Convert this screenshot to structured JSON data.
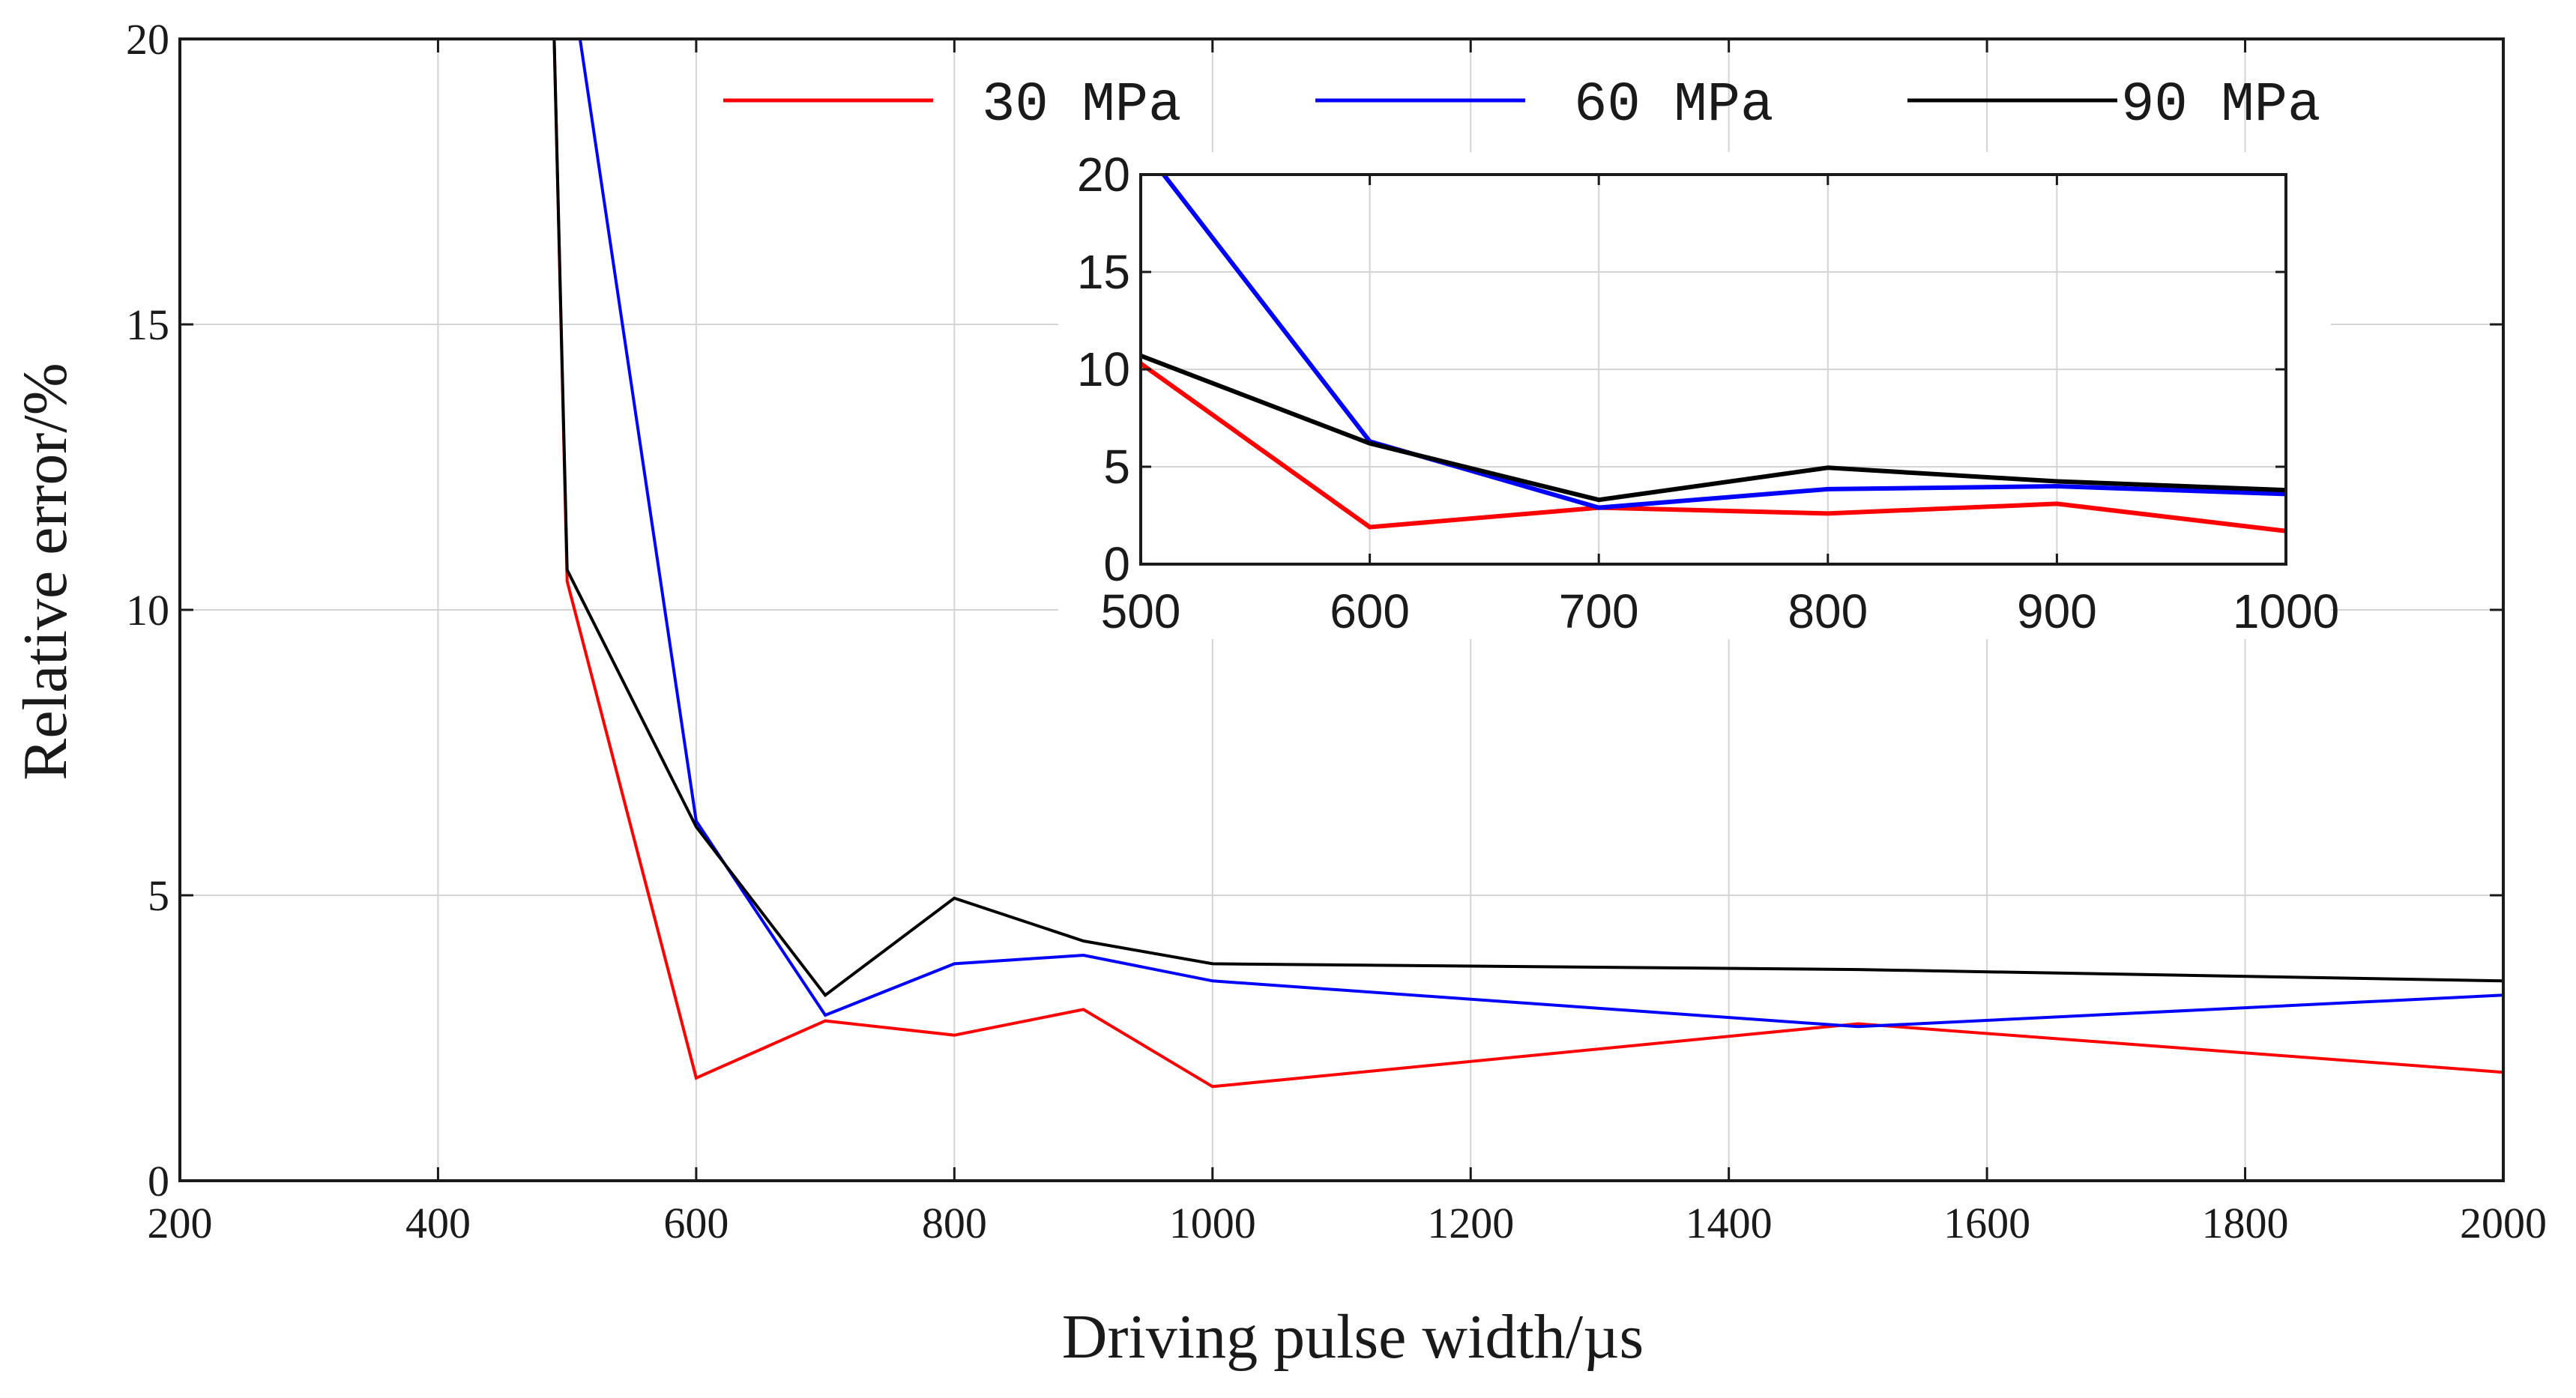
{
  "chart_data": [
    {
      "type": "line",
      "role": "main",
      "xlabel": "Driving pulse width/µs",
      "ylabel": "Relative error/%",
      "xlim": [
        200,
        2000
      ],
      "ylim": [
        0,
        20
      ],
      "xticks": [
        200,
        400,
        600,
        800,
        1000,
        1200,
        1400,
        1600,
        1800,
        2000
      ],
      "yticks": [
        0,
        5,
        10,
        15,
        20
      ],
      "grid": true,
      "legend": {
        "placement": "top"
      },
      "series": [
        {
          "name": "30 MPa",
          "color": "#ff0000",
          "x": [
            490,
            500,
            600,
            700,
            800,
            900,
            1000,
            1500,
            2000
          ],
          "y": [
            20,
            10.5,
            1.8,
            2.8,
            2.55,
            3.0,
            1.65,
            2.75,
            1.9
          ]
        },
        {
          "name": "60 MPa",
          "color": "#0000ff",
          "x": [
            510,
            600,
            700,
            800,
            900,
            1000,
            1500,
            2000
          ],
          "y": [
            20,
            6.3,
            2.9,
            3.8,
            3.95,
            3.5,
            2.7,
            3.25
          ]
        },
        {
          "name": "90 MPa",
          "color": "#000000",
          "x": [
            490,
            500,
            600,
            700,
            800,
            900,
            1000,
            1500,
            2000
          ],
          "y": [
            20,
            10.7,
            6.2,
            3.25,
            4.95,
            4.2,
            3.8,
            3.7,
            3.5
          ]
        }
      ]
    },
    {
      "type": "line",
      "role": "inset",
      "xlim": [
        500,
        1000
      ],
      "ylim": [
        0,
        20
      ],
      "xticks": [
        500,
        600,
        700,
        800,
        900,
        1000
      ],
      "yticks": [
        0,
        5,
        10,
        15,
        20
      ],
      "grid": true,
      "series": [
        {
          "name": "30 MPa",
          "color": "#ff0000",
          "x": [
            500,
            600,
            700,
            800,
            900,
            1000
          ],
          "y": [
            10.3,
            1.9,
            2.9,
            2.6,
            3.1,
            1.7
          ]
        },
        {
          "name": "60 MPa",
          "color": "#0000ff",
          "x": [
            510,
            600,
            700,
            800,
            900,
            1000
          ],
          "y": [
            20,
            6.3,
            2.9,
            3.85,
            4.0,
            3.6
          ]
        },
        {
          "name": "90 MPa",
          "color": "#000000",
          "x": [
            500,
            600,
            700,
            800,
            900,
            1000
          ],
          "y": [
            10.7,
            6.2,
            3.3,
            4.95,
            4.25,
            3.8
          ]
        }
      ]
    }
  ]
}
